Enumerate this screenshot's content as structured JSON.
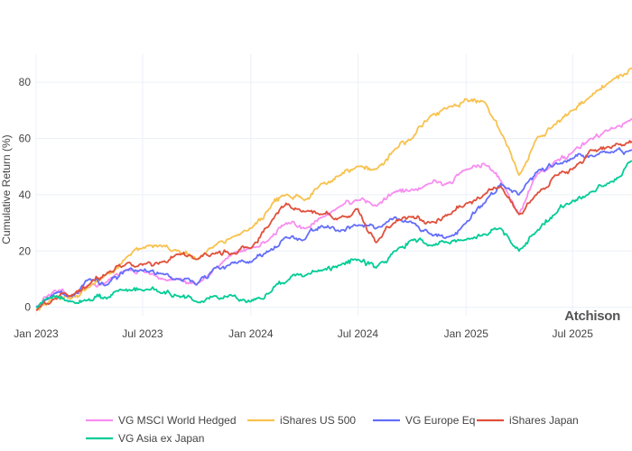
{
  "chart_data": {
    "type": "line",
    "title": "",
    "xlabel": "",
    "ylabel": "Cumulative Return (%)",
    "x_ticks": [
      "Jan 2023",
      "Jul 2023",
      "Jan 2024",
      "Jul 2024",
      "Jan 2025",
      "Jul 2025"
    ],
    "y_ticks": [
      0,
      20,
      40,
      60,
      80
    ],
    "xlim": [
      "2023-01-01",
      "2025-10-10"
    ],
    "ylim": [
      -3,
      90
    ],
    "grid": true,
    "legend_position": "bottom",
    "watermark": "Atchison",
    "series": [
      {
        "name": "VG MSCI World Hedged",
        "color": "#f78ef0",
        "points": [
          [
            "2023-01-01",
            0
          ],
          [
            "2023-02-01",
            6
          ],
          [
            "2023-03-01",
            3
          ],
          [
            "2023-04-01",
            8
          ],
          [
            "2023-05-01",
            9
          ],
          [
            "2023-06-01",
            13
          ],
          [
            "2023-07-01",
            13
          ],
          [
            "2023-08-01",
            10
          ],
          [
            "2023-09-01",
            10
          ],
          [
            "2023-10-01",
            8
          ],
          [
            "2023-11-01",
            14
          ],
          [
            "2023-12-01",
            19
          ],
          [
            "2024-01-01",
            21
          ],
          [
            "2024-02-01",
            24
          ],
          [
            "2024-03-01",
            30
          ],
          [
            "2024-04-01",
            28
          ],
          [
            "2024-05-01",
            32
          ],
          [
            "2024-06-01",
            36
          ],
          [
            "2024-07-01",
            38
          ],
          [
            "2024-08-01",
            36
          ],
          [
            "2024-09-01",
            41
          ],
          [
            "2024-10-01",
            42
          ],
          [
            "2024-11-01",
            44
          ],
          [
            "2024-12-01",
            44
          ],
          [
            "2025-01-01",
            49
          ],
          [
            "2025-02-01",
            51
          ],
          [
            "2025-03-01",
            45
          ],
          [
            "2025-04-01",
            33
          ],
          [
            "2025-05-01",
            47
          ],
          [
            "2025-06-01",
            52
          ],
          [
            "2025-07-01",
            55
          ],
          [
            "2025-08-01",
            60
          ],
          [
            "2025-09-01",
            63
          ],
          [
            "2025-10-10",
            67
          ]
        ]
      },
      {
        "name": "iShares US 500",
        "color": "#f8c24e",
        "points": [
          [
            "2023-01-01",
            -1
          ],
          [
            "2023-02-01",
            4
          ],
          [
            "2023-03-01",
            3
          ],
          [
            "2023-04-01",
            7
          ],
          [
            "2023-05-01",
            12
          ],
          [
            "2023-06-01",
            17
          ],
          [
            "2023-07-01",
            21
          ],
          [
            "2023-08-01",
            22
          ],
          [
            "2023-09-01",
            20
          ],
          [
            "2023-10-01",
            17
          ],
          [
            "2023-11-01",
            22
          ],
          [
            "2023-12-01",
            25
          ],
          [
            "2024-01-01",
            28
          ],
          [
            "2024-02-01",
            35
          ],
          [
            "2024-03-01",
            40
          ],
          [
            "2024-04-01",
            38
          ],
          [
            "2024-05-01",
            44
          ],
          [
            "2024-06-01",
            47
          ],
          [
            "2024-07-01",
            50
          ],
          [
            "2024-08-01",
            49
          ],
          [
            "2024-09-01",
            56
          ],
          [
            "2024-10-01",
            60
          ],
          [
            "2024-11-01",
            68
          ],
          [
            "2024-12-01",
            71
          ],
          [
            "2025-01-01",
            74
          ],
          [
            "2025-02-01",
            73
          ],
          [
            "2025-03-01",
            62
          ],
          [
            "2025-04-01",
            47
          ],
          [
            "2025-05-01",
            60
          ],
          [
            "2025-06-01",
            65
          ],
          [
            "2025-07-01",
            70
          ],
          [
            "2025-08-01",
            75
          ],
          [
            "2025-09-01",
            80
          ],
          [
            "2025-10-10",
            85
          ]
        ]
      },
      {
        "name": "VG Europe Eq",
        "color": "#636efa",
        "points": [
          [
            "2023-01-01",
            0
          ],
          [
            "2023-02-01",
            5
          ],
          [
            "2023-03-01",
            4
          ],
          [
            "2023-04-01",
            10
          ],
          [
            "2023-05-01",
            8
          ],
          [
            "2023-06-01",
            13
          ],
          [
            "2023-07-01",
            13
          ],
          [
            "2023-08-01",
            12
          ],
          [
            "2023-09-01",
            10
          ],
          [
            "2023-10-01",
            8
          ],
          [
            "2023-11-01",
            14
          ],
          [
            "2023-12-01",
            16
          ],
          [
            "2024-01-01",
            16
          ],
          [
            "2024-02-01",
            20
          ],
          [
            "2024-03-01",
            25
          ],
          [
            "2024-04-01",
            24
          ],
          [
            "2024-05-01",
            29
          ],
          [
            "2024-06-01",
            27
          ],
          [
            "2024-07-01",
            29
          ],
          [
            "2024-08-01",
            28
          ],
          [
            "2024-09-01",
            32
          ],
          [
            "2024-10-01",
            30
          ],
          [
            "2024-11-01",
            26
          ],
          [
            "2024-12-01",
            25
          ],
          [
            "2025-01-01",
            30
          ],
          [
            "2025-02-01",
            37
          ],
          [
            "2025-03-01",
            44
          ],
          [
            "2025-04-01",
            40
          ],
          [
            "2025-05-01",
            48
          ],
          [
            "2025-06-01",
            51
          ],
          [
            "2025-07-01",
            53
          ],
          [
            "2025-08-01",
            54
          ],
          [
            "2025-09-01",
            55
          ],
          [
            "2025-10-10",
            56
          ]
        ]
      },
      {
        "name": "iShares Japan",
        "color": "#e0503b",
        "points": [
          [
            "2023-01-01",
            -1
          ],
          [
            "2023-02-01",
            3
          ],
          [
            "2023-03-01",
            4
          ],
          [
            "2023-04-01",
            8
          ],
          [
            "2023-05-01",
            12
          ],
          [
            "2023-06-01",
            15
          ],
          [
            "2023-07-01",
            15
          ],
          [
            "2023-08-01",
            16
          ],
          [
            "2023-09-01",
            19
          ],
          [
            "2023-10-01",
            17
          ],
          [
            "2023-11-01",
            19
          ],
          [
            "2023-12-01",
            19
          ],
          [
            "2024-01-01",
            21
          ],
          [
            "2024-02-01",
            29
          ],
          [
            "2024-03-01",
            37
          ],
          [
            "2024-04-01",
            34
          ],
          [
            "2024-05-01",
            33
          ],
          [
            "2024-06-01",
            32
          ],
          [
            "2024-07-01",
            35
          ],
          [
            "2024-08-01",
            23
          ],
          [
            "2024-09-01",
            30
          ],
          [
            "2024-10-01",
            32
          ],
          [
            "2024-11-01",
            30
          ],
          [
            "2024-12-01",
            33
          ],
          [
            "2025-01-01",
            37
          ],
          [
            "2025-02-01",
            40
          ],
          [
            "2025-03-01",
            43
          ],
          [
            "2025-04-01",
            33
          ],
          [
            "2025-05-01",
            40
          ],
          [
            "2025-06-01",
            47
          ],
          [
            "2025-07-01",
            49
          ],
          [
            "2025-08-01",
            56
          ],
          [
            "2025-09-01",
            57
          ],
          [
            "2025-10-10",
            59
          ]
        ]
      },
      {
        "name": "VG Asia ex Japan",
        "color": "#00cc96",
        "points": [
          [
            "2023-01-01",
            0
          ],
          [
            "2023-02-01",
            4
          ],
          [
            "2023-03-01",
            2
          ],
          [
            "2023-04-01",
            3
          ],
          [
            "2023-05-01",
            3
          ],
          [
            "2023-06-01",
            6
          ],
          [
            "2023-07-01",
            6
          ],
          [
            "2023-08-01",
            5
          ],
          [
            "2023-09-01",
            4
          ],
          [
            "2023-10-01",
            2
          ],
          [
            "2023-11-01",
            4
          ],
          [
            "2023-12-01",
            4
          ],
          [
            "2024-01-01",
            2
          ],
          [
            "2024-02-01",
            5
          ],
          [
            "2024-03-01",
            9
          ],
          [
            "2024-04-01",
            11
          ],
          [
            "2024-05-01",
            13
          ],
          [
            "2024-06-01",
            15
          ],
          [
            "2024-07-01",
            17
          ],
          [
            "2024-08-01",
            14
          ],
          [
            "2024-09-01",
            20
          ],
          [
            "2024-10-01",
            24
          ],
          [
            "2024-11-01",
            22
          ],
          [
            "2024-12-01",
            23
          ],
          [
            "2025-01-01",
            24
          ],
          [
            "2025-02-01",
            26
          ],
          [
            "2025-03-01",
            28
          ],
          [
            "2025-04-01",
            20
          ],
          [
            "2025-05-01",
            27
          ],
          [
            "2025-06-01",
            33
          ],
          [
            "2025-07-01",
            38
          ],
          [
            "2025-08-01",
            41
          ],
          [
            "2025-09-01",
            44
          ],
          [
            "2025-10-10",
            52
          ]
        ]
      }
    ]
  }
}
